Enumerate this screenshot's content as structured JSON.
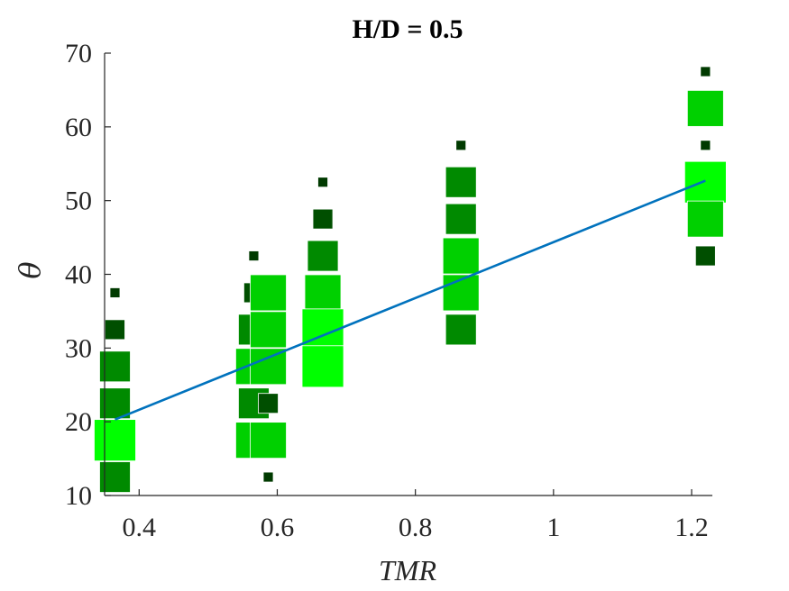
{
  "chart_data": {
    "type": "scatter",
    "title": "H/D = 0.5",
    "xlabel": "TMR",
    "ylabel": "θ",
    "xlim": [
      0.35,
      1.23
    ],
    "ylim": [
      10,
      70
    ],
    "xticks": [
      0.4,
      0.6,
      0.8,
      1,
      1.2
    ],
    "xtick_labels": [
      "0.4",
      "0.6",
      "0.8",
      "1",
      "1.2"
    ],
    "yticks": [
      10,
      20,
      30,
      40,
      50,
      60,
      70
    ],
    "ytick_labels": [
      "10",
      "20",
      "30",
      "40",
      "50",
      "60",
      "70"
    ],
    "grid": false,
    "legend": "none",
    "colors": {
      "fit_line": "#0072BD",
      "axis": "#262626",
      "marker_dark": "#003A00",
      "marker_mid": "#008A00",
      "marker_bright": "#00FF00"
    },
    "markers_note": "square markers; size and brightness increase with point count",
    "points": [
      {
        "x": 0.365,
        "y": 37.5,
        "w": 1
      },
      {
        "x": 0.365,
        "y": 32.5,
        "w": 2
      },
      {
        "x": 0.365,
        "y": 27.5,
        "w": 3
      },
      {
        "x": 0.365,
        "y": 22.5,
        "w": 3
      },
      {
        "x": 0.365,
        "y": 17.5,
        "w": 5
      },
      {
        "x": 0.365,
        "y": 12.5,
        "w": 3
      },
      {
        "x": 0.566,
        "y": 42.5,
        "w": 1
      },
      {
        "x": 0.566,
        "y": 37.5,
        "w": 2
      },
      {
        "x": 0.566,
        "y": 32.5,
        "w": 3
      },
      {
        "x": 0.566,
        "y": 27.5,
        "w": 4
      },
      {
        "x": 0.566,
        "y": 22.5,
        "w": 3
      },
      {
        "x": 0.566,
        "y": 17.5,
        "w": 4
      },
      {
        "x": 0.587,
        "y": 37.5,
        "w": 4
      },
      {
        "x": 0.587,
        "y": 32.5,
        "w": 4
      },
      {
        "x": 0.587,
        "y": 27.5,
        "w": 4
      },
      {
        "x": 0.587,
        "y": 22.5,
        "w": 2
      },
      {
        "x": 0.587,
        "y": 17.5,
        "w": 4
      },
      {
        "x": 0.587,
        "y": 12.5,
        "w": 1
      },
      {
        "x": 0.666,
        "y": 52.5,
        "w": 1
      },
      {
        "x": 0.666,
        "y": 47.5,
        "w": 2
      },
      {
        "x": 0.666,
        "y": 42.5,
        "w": 3
      },
      {
        "x": 0.666,
        "y": 37.5,
        "w": 4
      },
      {
        "x": 0.666,
        "y": 32.5,
        "w": 5
      },
      {
        "x": 0.666,
        "y": 27.5,
        "w": 5
      },
      {
        "x": 0.866,
        "y": 57.5,
        "w": 1
      },
      {
        "x": 0.866,
        "y": 52.5,
        "w": 3
      },
      {
        "x": 0.866,
        "y": 47.5,
        "w": 3
      },
      {
        "x": 0.866,
        "y": 42.5,
        "w": 4
      },
      {
        "x": 0.866,
        "y": 37.5,
        "w": 4
      },
      {
        "x": 0.866,
        "y": 32.5,
        "w": 3
      },
      {
        "x": 1.22,
        "y": 67.5,
        "w": 1
      },
      {
        "x": 1.22,
        "y": 62.5,
        "w": 4
      },
      {
        "x": 1.22,
        "y": 57.5,
        "w": 1
      },
      {
        "x": 1.22,
        "y": 52.5,
        "w": 5
      },
      {
        "x": 1.22,
        "y": 47.5,
        "w": 4
      },
      {
        "x": 1.22,
        "y": 42.5,
        "w": 2
      }
    ],
    "fit_line": {
      "x": [
        0.365,
        1.22
      ],
      "y": [
        20.3,
        52.7
      ]
    }
  }
}
